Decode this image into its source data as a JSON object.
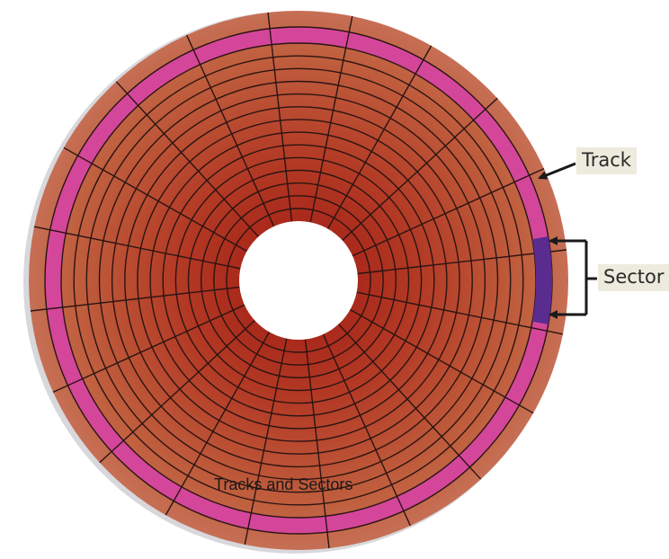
{
  "labels": {
    "track": "Track",
    "sector": "Sector",
    "caption": "Tracks and Sectors"
  },
  "disk": {
    "track_count": 14,
    "sector_count": 20,
    "highlighted_track": "outermost",
    "highlighted_sector": "right"
  },
  "colors": {
    "disk_outer": "#c26a50",
    "disk_inner": "#a01a12",
    "highlighted_track": "#d4469a",
    "highlighted_sector": "#5a2c90",
    "grid_lines": "#2b1412",
    "callout_background": "#ecebdd"
  }
}
